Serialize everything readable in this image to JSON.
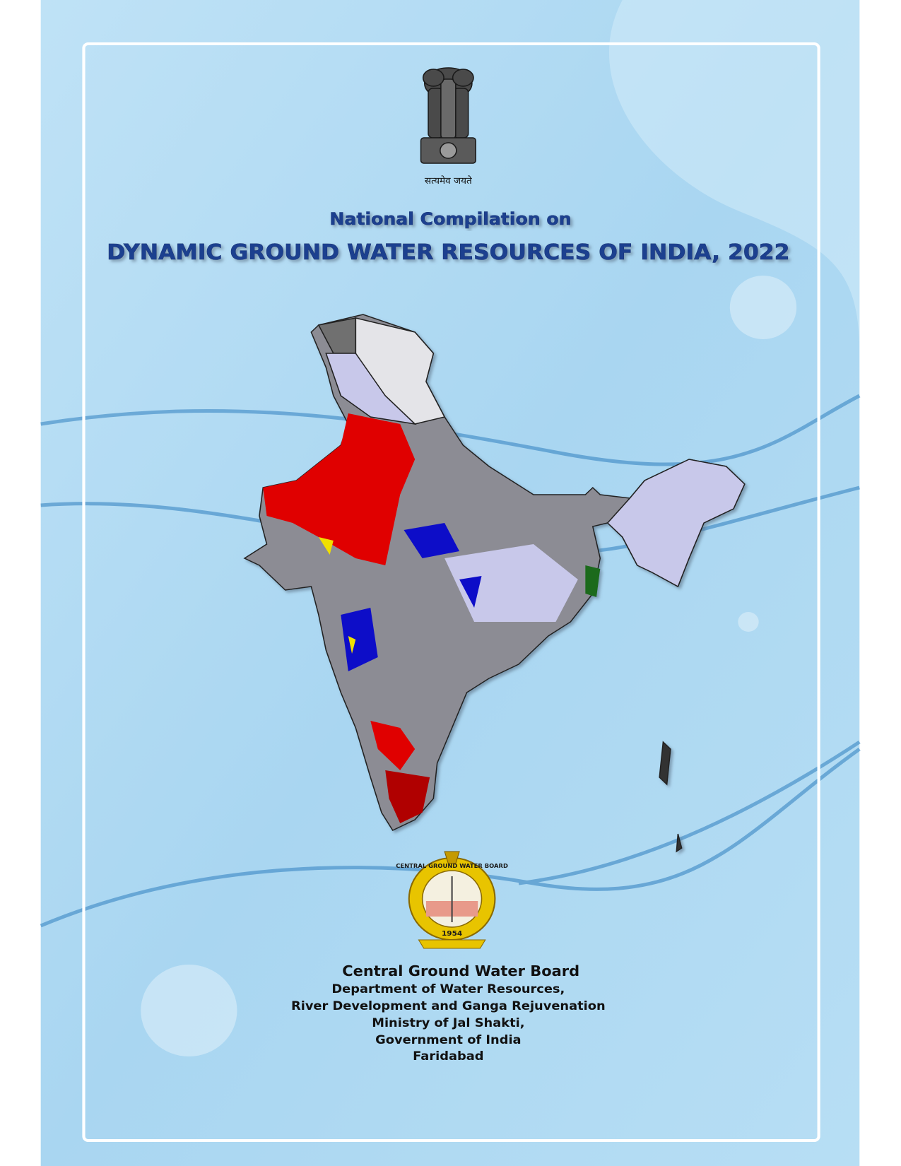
{
  "emblem": {
    "motto": "सत्यमेव जयते"
  },
  "header": {
    "subtitle": "National Compilation on",
    "title": "DYNAMIC GROUND WATER RESOURCES OF INDIA, 2022"
  },
  "logo": {
    "ring_text": "CENTRAL GROUND WATER BOARD",
    "year": "1954"
  },
  "footer": {
    "organization": "Central Ground Water Board",
    "lines": [
      "Department of Water Resources,",
      "River Development and Ganga Rejuvenation",
      "Ministry of Jal Shakti,",
      "Government of India",
      "Faridabad"
    ]
  }
}
